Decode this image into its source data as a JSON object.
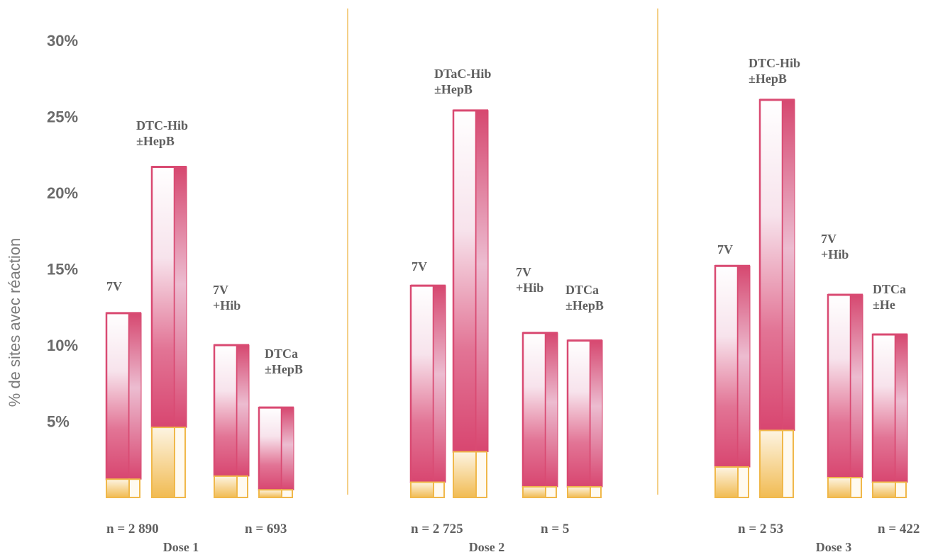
{
  "chart_data": {
    "type": "bar",
    "ylabel": "% de sites avec réaction",
    "ylim": [
      0,
      30
    ],
    "yticks": [
      "5%",
      "10%",
      "15%",
      "20%",
      "25%",
      "30%"
    ],
    "ytick_values": [
      5,
      10,
      15,
      20,
      25,
      30
    ],
    "colors": {
      "total": "#d94a72",
      "lower": "#f0b84a",
      "separator": "#f0c060",
      "text": "#5f5f5f"
    },
    "groups": [
      {
        "name": "Dose 1",
        "n_labels": [
          "n = 2 890",
          "n = 693"
        ],
        "bars": [
          {
            "label": [
              "7V"
            ],
            "total": 12.1,
            "lower": 1.2
          },
          {
            "label": [
              "DTC-Hib",
              "±HepB"
            ],
            "total": 21.7,
            "lower": 4.6
          },
          {
            "label": [
              "7V",
              "+Hib"
            ],
            "total": 10.0,
            "lower": 1.4
          },
          {
            "label": [
              "DTCa",
              "±HepB"
            ],
            "total": 5.9,
            "lower": 0.5
          }
        ]
      },
      {
        "name": "Dose 2",
        "n_labels": [
          "n = 2 725",
          "n = 5"
        ],
        "bars": [
          {
            "label": [
              "7V"
            ],
            "total": 13.9,
            "lower": 1.0
          },
          {
            "label": [
              "DTaC-Hib",
              "±HepB"
            ],
            "total": 25.4,
            "lower": 3.0
          },
          {
            "label": [
              "7V",
              "+Hib"
            ],
            "total": 10.8,
            "lower": 0.7
          },
          {
            "label": [
              "DTCa",
              "±HepB"
            ],
            "total": 10.3,
            "lower": 0.7
          }
        ]
      },
      {
        "name": "Dose 3",
        "n_labels": [
          "n = 2 53",
          "n = 422"
        ],
        "bars": [
          {
            "label": [
              "7V"
            ],
            "total": 15.2,
            "lower": 2.0
          },
          {
            "label": [
              "DTC-Hib",
              "±HepB"
            ],
            "total": 26.1,
            "lower": 4.4
          },
          {
            "label": [
              "7V",
              "+Hib"
            ],
            "total": 13.3,
            "lower": 1.3
          },
          {
            "label": [
              "DTCa",
              "±He"
            ],
            "total": 10.7,
            "lower": 1.0
          }
        ]
      }
    ]
  }
}
